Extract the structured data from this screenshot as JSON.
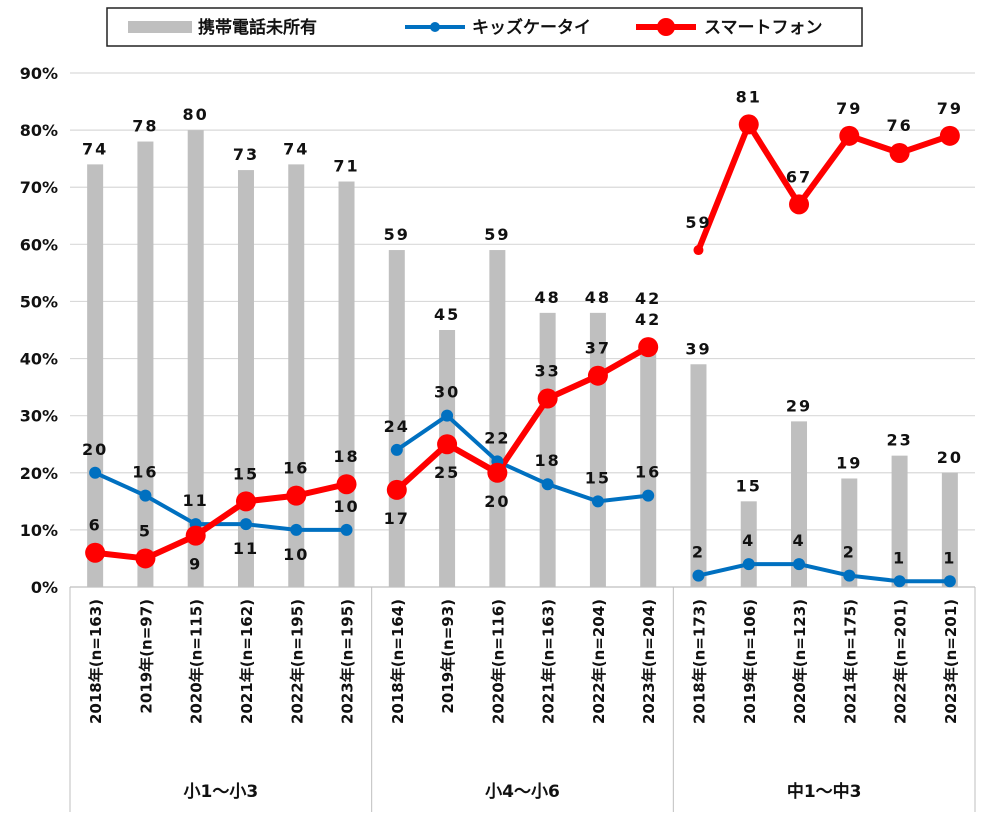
{
  "chart_data": {
    "type": "bar+line",
    "title": "",
    "ylim": [
      0,
      90
    ],
    "yticks": [
      "0%",
      "10%",
      "20%",
      "30%",
      "40%",
      "50%",
      "60%",
      "70%",
      "80%",
      "90%"
    ],
    "legend_position": "top",
    "legend": [
      "携帯電話未所有",
      "キッズケータイ",
      "スマートフォン"
    ],
    "colors": {
      "bar": "#bfbfbf",
      "kids": "#0070c0",
      "smart": "#ff0000",
      "grid": "#d9d9d9"
    },
    "groups": [
      {
        "label": "小1〜小3",
        "categories": [
          "2018年(n=163)",
          "2019年(n=97)",
          "2020年(n=115)",
          "2021年(n=162)",
          "2022年(n=195)",
          "2023年(n=195)"
        ],
        "no_phone": [
          74,
          78,
          80,
          73,
          74,
          71
        ],
        "kids_phone": [
          20,
          16,
          11,
          11,
          10,
          10
        ],
        "kids_label_pos": [
          "above",
          "above",
          "above",
          "below",
          "below",
          "above"
        ],
        "smartphone": [
          6,
          5,
          9,
          15,
          16,
          18
        ],
        "smart_label_pos": [
          "above",
          "above",
          "below",
          "above",
          "above",
          "above"
        ]
      },
      {
        "label": "小4〜小6",
        "categories": [
          "2018年(n=164)",
          "2019年(n=93)",
          "2020年(n=116)",
          "2021年(n=163)",
          "2022年(n=204)",
          "2023年(n=204)"
        ],
        "no_phone": [
          59,
          45,
          59,
          48,
          48,
          42
        ],
        "kids_phone": [
          24,
          30,
          22,
          18,
          15,
          16
        ],
        "kids_label_pos": [
          "above",
          "above",
          "above",
          "above",
          "above",
          "above"
        ],
        "smartphone": [
          17,
          25,
          20,
          33,
          37,
          42
        ],
        "smart_label_pos": [
          "below",
          "below",
          "below",
          "above",
          "above",
          "above"
        ]
      },
      {
        "label": "中1〜中3",
        "categories": [
          "2018年(n=173)",
          "2019年(n=106)",
          "2020年(n=123)",
          "2021年(n=175)",
          "2022年(n=201)",
          "2023年(n=201)"
        ],
        "no_phone": [
          39,
          15,
          29,
          19,
          23,
          20
        ],
        "kids_phone": [
          2,
          4,
          4,
          2,
          1,
          1
        ],
        "kids_label_pos": [
          "above",
          "above",
          "above",
          "above",
          "above",
          "above"
        ],
        "smartphone": [
          59,
          81,
          67,
          79,
          76,
          79
        ],
        "smart_label_pos": [
          "above",
          "above",
          "above",
          "above",
          "above",
          "above"
        ]
      }
    ]
  }
}
